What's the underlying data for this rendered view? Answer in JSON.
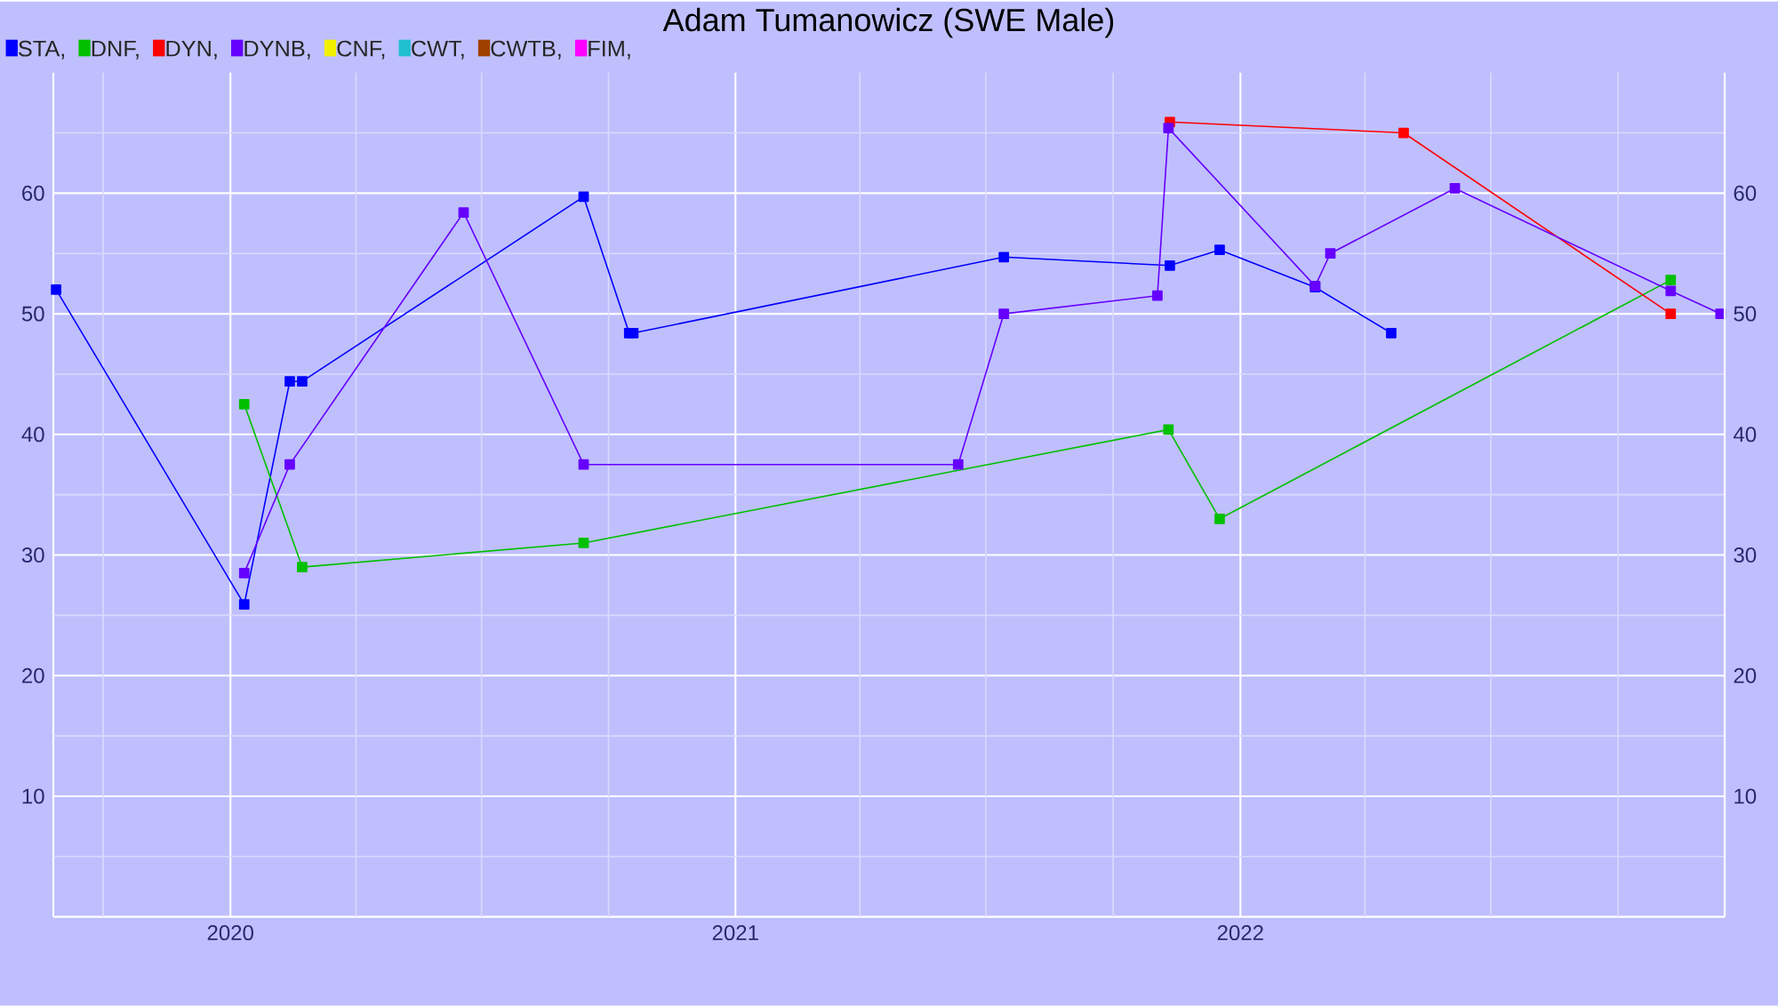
{
  "chart_data": {
    "type": "line",
    "title": "Adam Tumanowicz (SWE Male)",
    "series": [
      {
        "name": "STA,",
        "color": "#0000ff",
        "x": [
          "2019-08-28",
          "2020-01-11",
          "2020-02-13",
          "2020-02-22",
          "2020-09-13",
          "2020-10-16",
          "2020-10-19",
          "2021-07-14",
          "2021-11-11",
          "2021-12-17",
          "2022-02-24",
          "2022-04-20"
        ],
        "values": [
          52,
          25.9,
          44.4,
          44.4,
          59.7,
          48.4,
          48.4,
          54.7,
          54.0,
          55.3,
          52.2,
          48.4
        ]
      },
      {
        "name": "DNF,",
        "color": "#00c000",
        "x": [
          "2020-01-11",
          "2020-02-22",
          "2020-09-13",
          "2021-11-10",
          "2021-12-17",
          "2022-11-08"
        ],
        "values": [
          42.5,
          29.0,
          31.0,
          40.4,
          33.0,
          52.8
        ]
      },
      {
        "name": "DYN,",
        "color": "#ff0000",
        "x": [
          "2021-11-11",
          "2022-04-29",
          "2022-11-08"
        ],
        "values": [
          65.9,
          65.0,
          50.0
        ]
      },
      {
        "name": "DYNB,",
        "color": "#6600ff",
        "x": [
          "2020-01-11",
          "2020-02-13",
          "2020-06-18",
          "2020-09-13",
          "2021-06-11",
          "2021-07-14",
          "2021-11-02",
          "2021-11-10",
          "2022-02-24",
          "2022-03-07",
          "2022-06-05",
          "2022-11-08",
          "2022-12-14"
        ],
        "values": [
          28.5,
          37.5,
          58.4,
          37.5,
          37.5,
          50.0,
          51.5,
          65.4,
          52.3,
          55.0,
          60.4,
          51.9,
          50.0
        ]
      },
      {
        "name": "CNF,",
        "color": "#f0f000"
      },
      {
        "name": "CWT,",
        "color": "#20c0d0"
      },
      {
        "name": "CWTB,",
        "color": "#a04000"
      },
      {
        "name": "FIM,",
        "color": "#ff00ff"
      }
    ],
    "xlim": [
      "2019-08-26",
      "2022-12-17"
    ],
    "xticks": [
      {
        "value": "2019-10-01",
        "label": null
      },
      {
        "value": "2020-01-01",
        "label": "2020"
      },
      {
        "value": "2020-04-01",
        "label": null
      },
      {
        "value": "2020-07-01",
        "label": null
      },
      {
        "value": "2020-10-01",
        "label": null
      },
      {
        "value": "2021-01-01",
        "label": "2021"
      },
      {
        "value": "2021-04-01",
        "label": null
      },
      {
        "value": "2021-07-01",
        "label": null
      },
      {
        "value": "2021-10-01",
        "label": null
      },
      {
        "value": "2022-01-01",
        "label": "2022"
      },
      {
        "value": "2022-04-01",
        "label": null
      },
      {
        "value": "2022-07-01",
        "label": null
      },
      {
        "value": "2022-10-01",
        "label": null
      }
    ],
    "ylim": [
      0,
      70
    ],
    "yticks": [
      {
        "value": 5,
        "label": null
      },
      10,
      {
        "value": 15,
        "label": null
      },
      20,
      {
        "value": 25,
        "label": null
      },
      30,
      {
        "value": 35,
        "label": null
      },
      40,
      {
        "value": 45,
        "label": null
      },
      50,
      {
        "value": 55,
        "label": null
      },
      60,
      {
        "value": 65,
        "label": null
      }
    ],
    "y2lim": [
      0,
      70
    ],
    "y2ticks": [
      10,
      20,
      30,
      40,
      50,
      60
    ],
    "grid": true,
    "legend": "top left",
    "marker": "square",
    "line_style": "solid"
  }
}
